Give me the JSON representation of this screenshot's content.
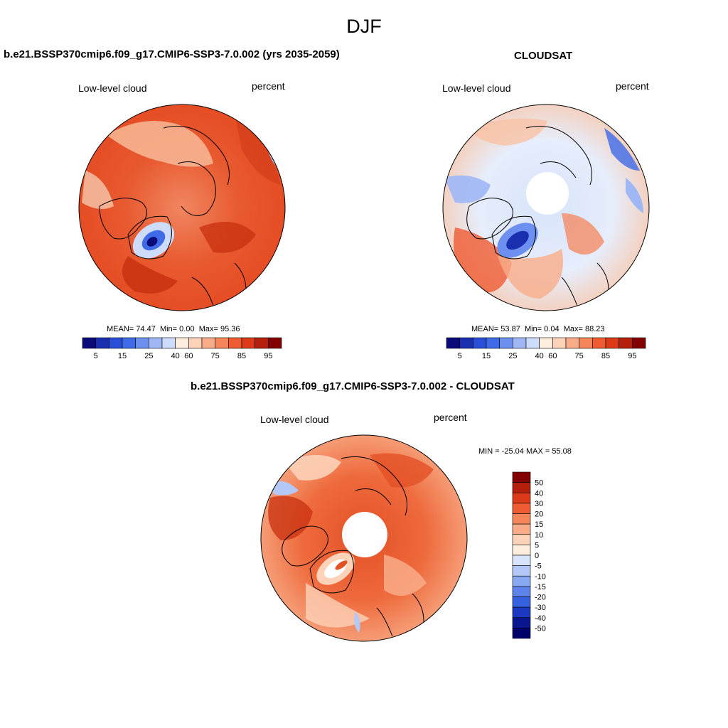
{
  "figure": {
    "title": "DJF"
  },
  "panels": [
    {
      "id": "model",
      "title": "b.e21.BSSP370cmip6.f09_g17.CMIP6-SSP3-7.0.002 (yrs 2035-2059)",
      "variable": "Low-level cloud",
      "units": "percent",
      "stats": {
        "mean_label": "MEAN=",
        "mean": "74.47",
        "min_label": "Min=",
        "min": "0.00",
        "max_label": "Max=",
        "max": "95.36"
      },
      "colorbar": {
        "orientation": "horizontal",
        "labels": [
          "5",
          "15",
          "25",
          "40",
          "60",
          "75",
          "85",
          "95"
        ],
        "colors": [
          "#0a0a78",
          "#1a2fb0",
          "#2a4fd8",
          "#3f6ae8",
          "#6d8ff0",
          "#9fb7f5",
          "#cddcfa",
          "#ffeedd",
          "#fcd2b8",
          "#f9ac88",
          "#f5855b",
          "#ef5b32",
          "#dc3a18",
          "#b5200c",
          "#820000"
        ]
      },
      "hole": false
    },
    {
      "id": "obs",
      "title": "CLOUDSAT",
      "variable": "Low-level cloud",
      "units": "percent",
      "stats": {
        "mean_label": "MEAN=",
        "mean": "53.87",
        "min_label": "Min=",
        "min": "0.04",
        "max_label": "Max=",
        "max": "88.23"
      },
      "colorbar": {
        "orientation": "horizontal",
        "labels": [
          "5",
          "15",
          "25",
          "40",
          "60",
          "75",
          "85",
          "95"
        ],
        "colors": [
          "#0a0a78",
          "#1a2fb0",
          "#2a4fd8",
          "#3f6ae8",
          "#6d8ff0",
          "#9fb7f5",
          "#cddcfa",
          "#ffeedd",
          "#fcd2b8",
          "#f9ac88",
          "#f5855b",
          "#ef5b32",
          "#dc3a18",
          "#b5200c",
          "#820000"
        ]
      },
      "hole": true
    },
    {
      "id": "diff",
      "title": "b.e21.BSSP370cmip6.f09_g17.CMIP6-SSP3-7.0.002 - CLOUDSAT",
      "variable": "Low-level cloud",
      "units": "percent",
      "stats": {
        "text": "MIN = -25.04 MAX =  55.08"
      },
      "colorbar": {
        "orientation": "vertical",
        "labels": [
          "50",
          "40",
          "30",
          "20",
          "15",
          "10",
          "5",
          "0",
          "-5",
          "-10",
          "-15",
          "-20",
          "-30",
          "-40",
          "-50"
        ],
        "colors": [
          "#820000",
          "#b5200c",
          "#dc3a18",
          "#ef5b32",
          "#f5855b",
          "#f9ac88",
          "#fcd2b8",
          "#ffeedd",
          "#d8e4fb",
          "#b3c8f7",
          "#89a8f2",
          "#5e84ec",
          "#3560e0",
          "#1a38c0",
          "#0a1590",
          "#00006b"
        ]
      },
      "hole": true
    }
  ]
}
